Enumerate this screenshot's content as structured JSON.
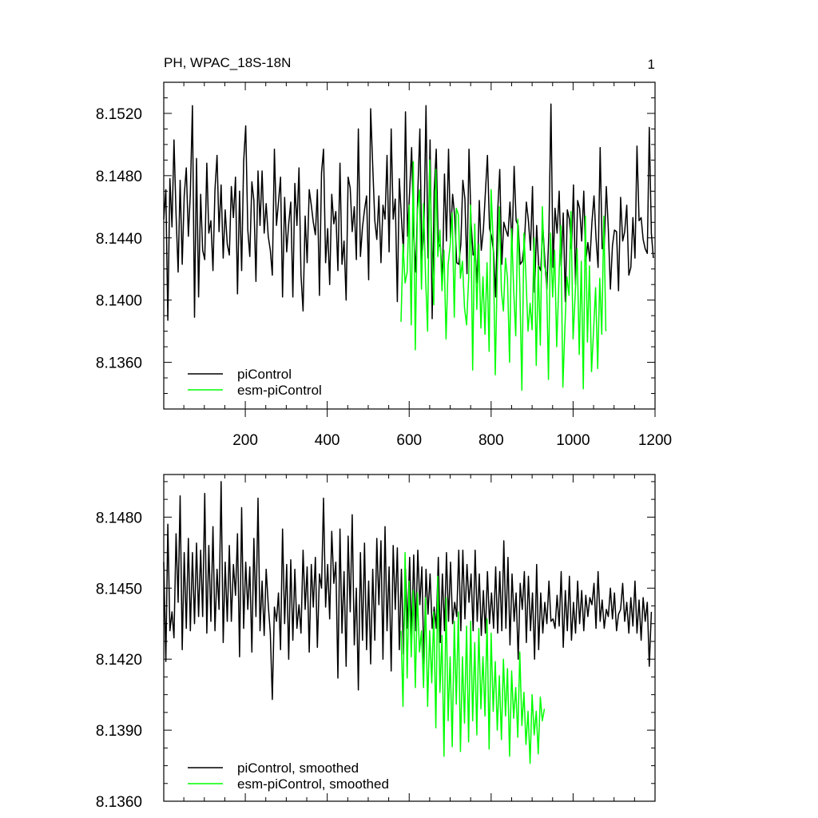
{
  "figure": {
    "title_left": "PH, WPAC_18S-18N",
    "title_right": "1"
  },
  "chart_data": [
    {
      "type": "line",
      "title": "PH, WPAC_18S-18N",
      "xlim": [
        1,
        1200
      ],
      "ylim": [
        8.133,
        8.154
      ],
      "xticks": [
        200,
        400,
        600,
        800,
        1000,
        1200
      ],
      "yticks": [
        8.136,
        8.14,
        8.144,
        8.148,
        8.152
      ],
      "ytick_labels": [
        "8.1360",
        "8.1400",
        "8.1440",
        "8.1480",
        "8.1520"
      ],
      "xlabel": "",
      "ylabel": "",
      "grid": false,
      "legend": "bottom-left",
      "series": [
        {
          "name": "piControl",
          "color": "#000000",
          "x_start": 1,
          "x_step": 5,
          "values": [
            8.1452,
            8.1471,
            8.1387,
            8.1478,
            8.1447,
            8.1503,
            8.1455,
            8.1418,
            8.1477,
            8.1423,
            8.1467,
            8.1485,
            8.1441,
            8.1469,
            8.1525,
            8.1389,
            8.1491,
            8.1402,
            8.1468,
            8.1432,
            8.1426,
            8.1488,
            8.1443,
            8.1451,
            8.1419,
            8.1471,
            8.1493,
            8.1444,
            8.1474,
            8.1427,
            8.1458,
            8.1436,
            8.1429,
            8.1473,
            8.1453,
            8.1479,
            8.1404,
            8.147,
            8.1419,
            8.1489,
            8.1512,
            8.1445,
            8.1428,
            8.1476,
            8.1464,
            8.1412,
            8.1483,
            8.1448,
            8.1483,
            8.1443,
            8.1462,
            8.1441,
            8.1432,
            8.1416,
            8.1497,
            8.1448,
            8.1463,
            8.1479,
            8.1402,
            8.1466,
            8.1431,
            8.1449,
            8.1463,
            8.1402,
            8.1475,
            8.1448,
            8.1485,
            8.1416,
            8.1393,
            8.1454,
            8.1424,
            8.1471,
            8.1461,
            8.145,
            8.1442,
            8.1471,
            8.1403,
            8.1482,
            8.1497,
            8.1424,
            8.1446,
            8.141,
            8.1468,
            8.1449,
            8.1457,
            8.1419,
            8.1488,
            8.1423,
            8.1438,
            8.14,
            8.1479,
            8.1472,
            8.1444,
            8.146,
            8.1426,
            8.151,
            8.1428,
            8.1447,
            8.1458,
            8.1467,
            8.1413,
            8.1523,
            8.1486,
            8.1451,
            8.1439,
            8.1467,
            8.1424,
            8.1461,
            8.1452,
            8.1493,
            8.1431,
            8.151,
            8.1452,
            8.1465,
            8.1399,
            8.1478,
            8.1453,
            8.143,
            8.1521,
            8.1441,
            8.147,
            8.1498,
            8.1441,
            8.1418,
            8.1469,
            8.151,
            8.1426,
            8.1445,
            8.1525,
            8.1427,
            8.1503,
            8.1388,
            8.147,
            8.1497,
            8.1434,
            8.1436,
            8.1412,
            8.1481,
            8.1438,
            8.1497,
            8.144,
            8.1468,
            8.1454,
            8.1424,
            8.1423,
            8.1436,
            8.1477,
            8.1465,
            8.1417,
            8.1497,
            8.145,
            8.1429,
            8.1431,
            8.1411,
            8.1464,
            8.1432,
            8.1445,
            8.1469,
            8.1493,
            8.1446,
            8.1441,
            8.1431,
            8.1402,
            8.1457,
            8.1484,
            8.1423,
            8.145,
            8.1445,
            8.1441,
            8.1463,
            8.1435,
            8.1486,
            8.1451,
            8.1448,
            8.1423,
            8.1425,
            8.1436,
            8.1463,
            8.1451,
            8.1432,
            8.1473,
            8.1405,
            8.1448,
            8.1422,
            8.1419,
            8.1448,
            8.1426,
            8.1407,
            8.1445,
            8.1526,
            8.1421,
            8.1459,
            8.1443,
            8.147,
            8.1422,
            8.1456,
            8.1399,
            8.1458,
            8.1452,
            8.1433,
            8.1474,
            8.141,
            8.1464,
            8.1459,
            8.1438,
            8.147,
            8.1425,
            8.1437,
            8.1425,
            8.145,
            8.1467,
            8.144,
            8.1421,
            8.1498,
            8.1433,
            8.1435,
            8.1473,
            8.1446,
            8.1407,
            8.1435,
            8.1445,
            8.1444,
            8.1406,
            8.1466,
            8.1438,
            8.1444,
            8.1461,
            8.1416,
            8.1421,
            8.1453,
            8.1427,
            8.1499,
            8.1451,
            8.1453,
            8.1439,
            8.1433,
            8.143,
            8.1511,
            8.1443,
            8.1427
          ]
        },
        {
          "name": "esm-piControl",
          "color": "#00ff00",
          "x_start": 580,
          "x_step": 5,
          "values": [
            8.1386,
            8.1436,
            8.1411,
            8.1418,
            8.1461,
            8.1384,
            8.1489,
            8.1368,
            8.1457,
            8.1471,
            8.1407,
            8.1462,
            8.1414,
            8.138,
            8.149,
            8.1433,
            8.1397,
            8.1484,
            8.1428,
            8.1445,
            8.1406,
            8.1432,
            8.1375,
            8.1423,
            8.1435,
            8.1456,
            8.1389,
            8.1459,
            8.1455,
            8.1414,
            8.1425,
            8.1395,
            8.1384,
            8.1413,
            8.1461,
            8.1355,
            8.1449,
            8.1394,
            8.1436,
            8.1382,
            8.1415,
            8.1378,
            8.1424,
            8.1367,
            8.1471,
            8.1437,
            8.1352,
            8.1419,
            8.146,
            8.1406,
            8.1393,
            8.1427,
            8.1414,
            8.136,
            8.1446,
            8.1407,
            8.1377,
            8.1452,
            8.1409,
            8.1342,
            8.1443,
            8.1415,
            8.138,
            8.1398,
            8.1381,
            8.144,
            8.1358,
            8.1422,
            8.1371,
            8.146,
            8.1422,
            8.1417,
            8.1349,
            8.1443,
            8.1402,
            8.1432,
            8.137,
            8.141,
            8.1448,
            8.1344,
            8.1383,
            8.1415,
            8.1403,
            8.1457,
            8.1375,
            8.1403,
            8.1433,
            8.1365,
            8.1425,
            8.1343,
            8.1454,
            8.1373,
            8.1422,
            8.1354,
            8.1381,
            8.1408,
            8.1356,
            8.1414,
            8.1378,
            8.1454,
            8.138
          ]
        }
      ]
    },
    {
      "type": "line",
      "title": "",
      "xlim": [
        1,
        1200
      ],
      "ylim": [
        8.136,
        8.1498
      ],
      "xticks": [
        200,
        400,
        600,
        800,
        1000,
        1200
      ],
      "yticks": [
        8.136,
        8.139,
        8.142,
        8.145,
        8.148
      ],
      "ytick_labels": [
        "8.1360",
        "8.1390",
        "8.1420",
        "8.1450",
        "8.1480"
      ],
      "xlabel": "",
      "ylabel": "",
      "grid": false,
      "legend": "bottom-left",
      "series": [
        {
          "name": "piControl, smoothed",
          "color": "#000000",
          "x_start": 1,
          "x_step": 5,
          "values": [
            8.1461,
            8.1419,
            8.1477,
            8.1432,
            8.144,
            8.1429,
            8.1473,
            8.1444,
            8.1489,
            8.1424,
            8.1465,
            8.1433,
            8.1471,
            8.1432,
            8.1465,
            8.1435,
            8.1469,
            8.1438,
            8.1466,
            8.1438,
            8.149,
            8.1431,
            8.1468,
            8.1436,
            8.1476,
            8.1432,
            8.1458,
            8.1441,
            8.1495,
            8.1427,
            8.1461,
            8.1436,
            8.1468,
            8.1436,
            8.146,
            8.1447,
            8.1473,
            8.1421,
            8.1484,
            8.1433,
            8.1461,
            8.1441,
            8.1459,
            8.1423,
            8.1471,
            8.1438,
            8.1488,
            8.1432,
            8.1453,
            8.143,
            8.1458,
            8.1443,
            8.1431,
            8.1403,
            8.1442,
            8.1436,
            8.1448,
            8.1424,
            8.1475,
            8.1435,
            8.146,
            8.142,
            8.1462,
            8.1428,
            8.1458,
            8.1433,
            8.1443,
            8.1431,
            8.1466,
            8.1441,
            8.1459,
            8.1423,
            8.146,
            8.1442,
            8.1463,
            8.1425,
            8.1456,
            8.145,
            8.1488,
            8.1442,
            8.146,
            8.1437,
            8.1474,
            8.1452,
            8.1461,
            8.1412,
            8.1475,
            8.1431,
            8.1457,
            8.1417,
            8.1472,
            8.144,
            8.1481,
            8.1426,
            8.145,
            8.1407,
            8.1465,
            8.1428,
            8.1469,
            8.1424,
            8.1453,
            8.1418,
            8.1458,
            8.1428,
            8.1471,
            8.1443,
            8.147,
            8.142,
            8.1476,
            8.1432,
            8.1459,
            8.1415,
            8.1468,
            8.1441,
            8.1467,
            8.1424,
            8.1458,
            8.1422,
            8.1458,
            8.1433,
            8.1463,
            8.1429,
            8.1464,
            8.1432,
            8.1466,
            8.1443,
            8.1459,
            8.1418,
            8.1458,
            8.1439,
            8.1456,
            8.1433,
            8.1442,
            8.1433,
            8.1463,
            8.1427,
            8.1456,
            8.1432,
            8.1465,
            8.1436,
            8.1461,
            8.1435,
            8.1444,
            8.1438,
            8.1466,
            8.1432,
            8.1466,
            8.1437,
            8.146,
            8.1444,
            8.1456,
            8.1432,
            8.1466,
            8.1436,
            8.1456,
            8.143,
            8.1449,
            8.1431,
            8.1457,
            8.1435,
            8.1448,
            8.1433,
            8.1459,
            8.1431,
            8.1457,
            8.1432,
            8.147,
            8.1433,
            8.1463,
            8.1426,
            8.1456,
            8.1436,
            8.1448,
            8.142,
            8.1452,
            8.1441,
            8.1457,
            8.1427,
            8.1455,
            8.1432,
            8.1448,
            8.142,
            8.146,
            8.1424,
            8.1448,
            8.1431,
            8.1444,
            8.1435,
            8.1453,
            8.1436,
            8.1437,
            8.1433,
            8.1447,
            8.1434,
            8.1457,
            8.1425,
            8.1449,
            8.1432,
            8.1455,
            8.1428,
            8.1444,
            8.1431,
            8.1453,
            8.1435,
            8.1449,
            8.1432,
            8.1447,
            8.1438,
            8.1446,
            8.1443,
            8.1452,
            8.1433,
            8.1457,
            8.1436,
            8.1445,
            8.1433,
            8.1441,
            8.1438,
            8.145,
            8.1437,
            8.1448,
            8.1432,
            8.1439,
            8.1441,
            8.1452,
            8.1436,
            8.1444,
            8.1431,
            8.1446,
            8.1434,
            8.1453,
            8.1431,
            8.1445,
            8.1428,
            8.1446,
            8.1436,
            8.1444,
            8.1417,
            8.144
          ]
        },
        {
          "name": "esm-piControl, smoothed",
          "color": "#00ff00",
          "x_start": 580,
          "x_step": 5,
          "values": [
            8.1432,
            8.14,
            8.1465,
            8.1412,
            8.1453,
            8.1421,
            8.1449,
            8.1408,
            8.1448,
            8.1423,
            8.1432,
            8.1408,
            8.1446,
            8.14,
            8.1432,
            8.141,
            8.144,
            8.1391,
            8.1455,
            8.1406,
            8.143,
            8.1379,
            8.1446,
            8.1394,
            8.1421,
            8.1383,
            8.1436,
            8.1401,
            8.144,
            8.1381,
            8.1421,
            8.1393,
            8.1434,
            8.1385,
            8.1436,
            8.1394,
            8.1427,
            8.1388,
            8.1433,
            8.1399,
            8.1421,
            8.1396,
            8.1437,
            8.1382,
            8.1431,
            8.1398,
            8.1419,
            8.139,
            8.1413,
            8.1386,
            8.142,
            8.1396,
            8.1416,
            8.1379,
            8.1415,
            8.1395,
            8.1408,
            8.1387,
            8.1423,
            8.1392,
            8.1406,
            8.1384,
            8.1398,
            8.1376,
            8.1405,
            8.1388,
            8.1398,
            8.138,
            8.1404,
            8.1394,
            8.1399
          ]
        }
      ]
    }
  ]
}
